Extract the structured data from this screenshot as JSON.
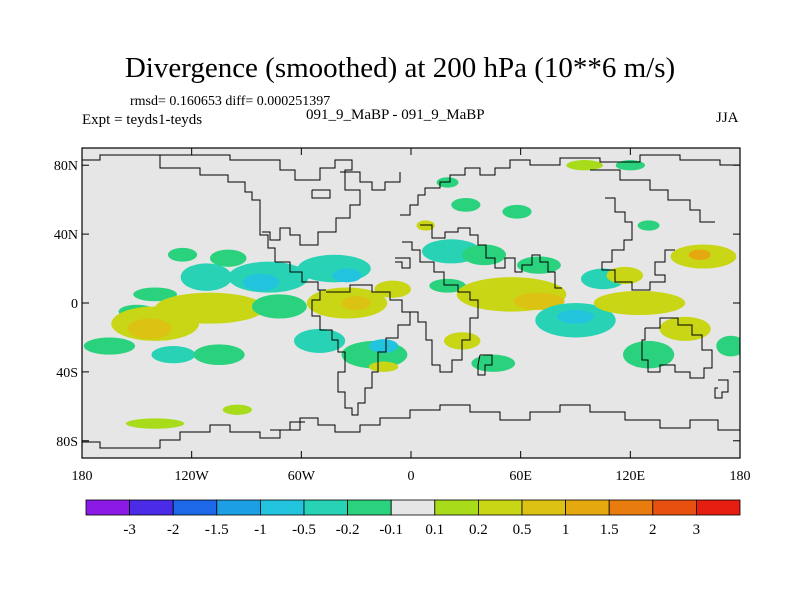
{
  "chart_data": {
    "type": "heatmap",
    "title": "Divergence (smoothed) at 200 hPa (10**6 m/s)",
    "stats_label": "rmsd= 0.160653 diff= 0.000251397",
    "experiment_label": "Expt = teyds1-teyds",
    "subtitle": "091_9_MaBP - 091_9_MaBP",
    "season": "JJA",
    "x_axis": {
      "range": [
        -180,
        180
      ],
      "ticks": [
        {
          "value": -180,
          "label": "180"
        },
        {
          "value": -120,
          "label": "120W"
        },
        {
          "value": -60,
          "label": "60W"
        },
        {
          "value": 0,
          "label": "0"
        },
        {
          "value": 60,
          "label": "60E"
        },
        {
          "value": 120,
          "label": "120E"
        },
        {
          "value": 180,
          "label": "180"
        }
      ]
    },
    "y_axis": {
      "range": [
        -90,
        90
      ],
      "ticks": [
        {
          "value": 80,
          "label": "80N"
        },
        {
          "value": 40,
          "label": "40N"
        },
        {
          "value": 0,
          "label": "0"
        },
        {
          "value": -40,
          "label": "40S"
        },
        {
          "value": -80,
          "label": "80S"
        }
      ]
    },
    "colorbar": {
      "colors": [
        "#8b1ae6",
        "#4b2ae8",
        "#1c68e8",
        "#1d9fe6",
        "#22c4dd",
        "#28d2b4",
        "#2bd27e",
        "#e6e6e6",
        "#a8dc1a",
        "#c8d616",
        "#dcc212",
        "#e5a80f",
        "#e87c0e",
        "#e8500f",
        "#e61e12"
      ],
      "labels": [
        "-3",
        "-2",
        "-1.5",
        "-1",
        "-0.5",
        "-0.2",
        "-0.1",
        "0.1",
        "0.2",
        "0.5",
        "1",
        "1.5",
        "2",
        "3"
      ]
    },
    "features": [
      {
        "lon": -150,
        "lat": -5,
        "rx": 10,
        "ry": 4,
        "level": 6
      },
      {
        "lon": -140,
        "lat": 5,
        "rx": 12,
        "ry": 4,
        "level": 6
      },
      {
        "lon": -165,
        "lat": -25,
        "rx": 14,
        "ry": 5,
        "level": 6
      },
      {
        "lon": -140,
        "lat": -12,
        "rx": 24,
        "ry": 10,
        "level": 9
      },
      {
        "lon": -143,
        "lat": -15,
        "rx": 12,
        "ry": 6,
        "level": 10
      },
      {
        "lon": -125,
        "lat": 28,
        "rx": 8,
        "ry": 4,
        "level": 6
      },
      {
        "lon": -100,
        "lat": 26,
        "rx": 10,
        "ry": 5,
        "level": 6
      },
      {
        "lon": -112,
        "lat": 15,
        "rx": 14,
        "ry": 8,
        "level": 5
      },
      {
        "lon": -78,
        "lat": 15,
        "rx": 22,
        "ry": 9,
        "level": 5
      },
      {
        "lon": -82,
        "lat": 12,
        "rx": 10,
        "ry": 5,
        "level": 4
      },
      {
        "lon": -110,
        "lat": -3,
        "rx": 30,
        "ry": 9,
        "level": 9
      },
      {
        "lon": -130,
        "lat": -30,
        "rx": 12,
        "ry": 5,
        "level": 5
      },
      {
        "lon": -105,
        "lat": -30,
        "rx": 14,
        "ry": 6,
        "level": 6
      },
      {
        "lon": -72,
        "lat": -2,
        "rx": 15,
        "ry": 7,
        "level": 6
      },
      {
        "lon": -42,
        "lat": 20,
        "rx": 20,
        "ry": 8,
        "level": 5
      },
      {
        "lon": -35,
        "lat": 16,
        "rx": 8,
        "ry": 4,
        "level": 4
      },
      {
        "lon": -35,
        "lat": 0,
        "rx": 22,
        "ry": 9,
        "level": 9
      },
      {
        "lon": -30,
        "lat": 0,
        "rx": 8,
        "ry": 4,
        "level": 10
      },
      {
        "lon": -50,
        "lat": -22,
        "rx": 14,
        "ry": 7,
        "level": 5
      },
      {
        "lon": -20,
        "lat": -30,
        "rx": 18,
        "ry": 8,
        "level": 6
      },
      {
        "lon": -15,
        "lat": -25,
        "rx": 8,
        "ry": 4,
        "level": 4
      },
      {
        "lon": -10,
        "lat": 8,
        "rx": 10,
        "ry": 5,
        "level": 9
      },
      {
        "lon": 22,
        "lat": 30,
        "rx": 16,
        "ry": 7,
        "level": 5
      },
      {
        "lon": 40,
        "lat": 28,
        "rx": 12,
        "ry": 6,
        "level": 6
      },
      {
        "lon": 30,
        "lat": 57,
        "rx": 8,
        "ry": 4,
        "level": 6
      },
      {
        "lon": 58,
        "lat": 53,
        "rx": 8,
        "ry": 4,
        "level": 6
      },
      {
        "lon": 20,
        "lat": 10,
        "rx": 10,
        "ry": 4,
        "level": 6
      },
      {
        "lon": 28,
        "lat": -22,
        "rx": 10,
        "ry": 5,
        "level": 9
      },
      {
        "lon": 55,
        "lat": 5,
        "rx": 30,
        "ry": 10,
        "level": 9
      },
      {
        "lon": 70,
        "lat": 1,
        "rx": 14,
        "ry": 5,
        "level": 10
      },
      {
        "lon": 70,
        "lat": 22,
        "rx": 12,
        "ry": 5,
        "level": 6
      },
      {
        "lon": 45,
        "lat": -35,
        "rx": 12,
        "ry": 5,
        "level": 6
      },
      {
        "lon": 90,
        "lat": -10,
        "rx": 22,
        "ry": 10,
        "level": 5
      },
      {
        "lon": 90,
        "lat": -8,
        "rx": 10,
        "ry": 4,
        "level": 4
      },
      {
        "lon": 105,
        "lat": 14,
        "rx": 12,
        "ry": 6,
        "level": 5
      },
      {
        "lon": 117,
        "lat": 16,
        "rx": 10,
        "ry": 5,
        "level": 9
      },
      {
        "lon": 125,
        "lat": 0,
        "rx": 25,
        "ry": 7,
        "level": 9
      },
      {
        "lon": 130,
        "lat": -30,
        "rx": 14,
        "ry": 8,
        "level": 6
      },
      {
        "lon": 150,
        "lat": -15,
        "rx": 14,
        "ry": 7,
        "level": 9
      },
      {
        "lon": 160,
        "lat": 27,
        "rx": 18,
        "ry": 7,
        "level": 9
      },
      {
        "lon": 158,
        "lat": 28,
        "rx": 6,
        "ry": 3,
        "level": 11
      },
      {
        "lon": 175,
        "lat": -25,
        "rx": 8,
        "ry": 6,
        "level": 6
      },
      {
        "lon": 130,
        "lat": 45,
        "rx": 6,
        "ry": 3,
        "level": 6
      },
      {
        "lon": 95,
        "lat": 80,
        "rx": 10,
        "ry": 3,
        "level": 8
      },
      {
        "lon": 120,
        "lat": 80,
        "rx": 8,
        "ry": 3,
        "level": 6
      },
      {
        "lon": 20,
        "lat": 70,
        "rx": 6,
        "ry": 3,
        "level": 6
      },
      {
        "lon": -95,
        "lat": -62,
        "rx": 8,
        "ry": 3,
        "level": 8
      },
      {
        "lon": -140,
        "lat": -70,
        "rx": 16,
        "ry": 3,
        "level": 8
      },
      {
        "lon": -15,
        "lat": -37,
        "rx": 8,
        "ry": 3,
        "level": 9
      },
      {
        "lon": 8,
        "lat": 45,
        "rx": 5,
        "ry": 3,
        "level": 9
      }
    ]
  }
}
